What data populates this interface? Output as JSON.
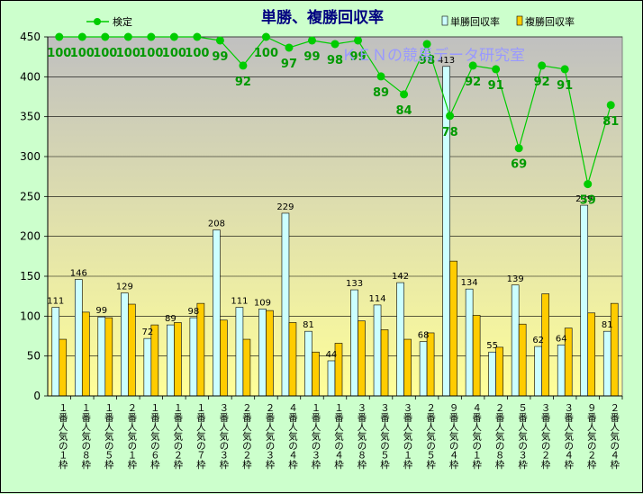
{
  "chart_data": {
    "type": "bar",
    "title": "単勝、複勝回収率",
    "watermark": "ＫＥＮの競馬データ研究室",
    "legend": {
      "line_label": "検定",
      "bar1_label": "単勝回収率",
      "bar2_label": "複勝回収率"
    },
    "ylim": [
      0,
      450
    ],
    "yticks": [
      0,
      50,
      100,
      150,
      200,
      250,
      300,
      350,
      400,
      450
    ],
    "categories": [
      "１番人気の１枠",
      "１番人気の８枠",
      "１番人気の５枠",
      "２番人気の１枠",
      "１番人気の６枠",
      "１番人気の２枠",
      "１番人気の７枠",
      "３番人気の３枠",
      "２番人気の２枠",
      "２番人気の３枠",
      "４番人気の４枠",
      "１番人気の３枠",
      "１番人気の４枠",
      "３番人気の８枠",
      "３番人気の５枠",
      "３番人気の１枠",
      "２番人気の５枠",
      "９番人気の４枠",
      "４番人気の１枠",
      "２番人気の８枠",
      "５番人気の３枠",
      "３番人気の２枠",
      "３番人気の４枠",
      "９番人気の２枠",
      "２番人気の４枠"
    ],
    "series": [
      {
        "name": "単勝回収率",
        "values": [
          111,
          146,
          99,
          129,
          72,
          89,
          98,
          208,
          111,
          109,
          229,
          81,
          44,
          133,
          114,
          142,
          68,
          413,
          134,
          55,
          139,
          62,
          64,
          239,
          81
        ]
      },
      {
        "name": "複勝回収率",
        "values": [
          71,
          105,
          98,
          115,
          89,
          92,
          116,
          95,
          71,
          107,
          92,
          55,
          66,
          94,
          83,
          71,
          79,
          169,
          101,
          61,
          90,
          128,
          85,
          104,
          116
        ]
      },
      {
        "name": "検定",
        "values": [
          100,
          100,
          100,
          100,
          100,
          100,
          100,
          99,
          92,
          100,
          97,
          99,
          98,
          99,
          89,
          84,
          98,
          78,
          92,
          91,
          69,
          92,
          91,
          59,
          81
        ]
      }
    ],
    "colors": {
      "bar1": "#ccffff",
      "bar2": "#ffcc00",
      "line": "#00cc00",
      "line_label": "#009900",
      "plot_bg_top": "#c0c0c0",
      "plot_bg_bottom": "#ffff99",
      "outer_bg": "#ccffcc",
      "title": "#000080",
      "watermark": "#9999ff"
    }
  }
}
